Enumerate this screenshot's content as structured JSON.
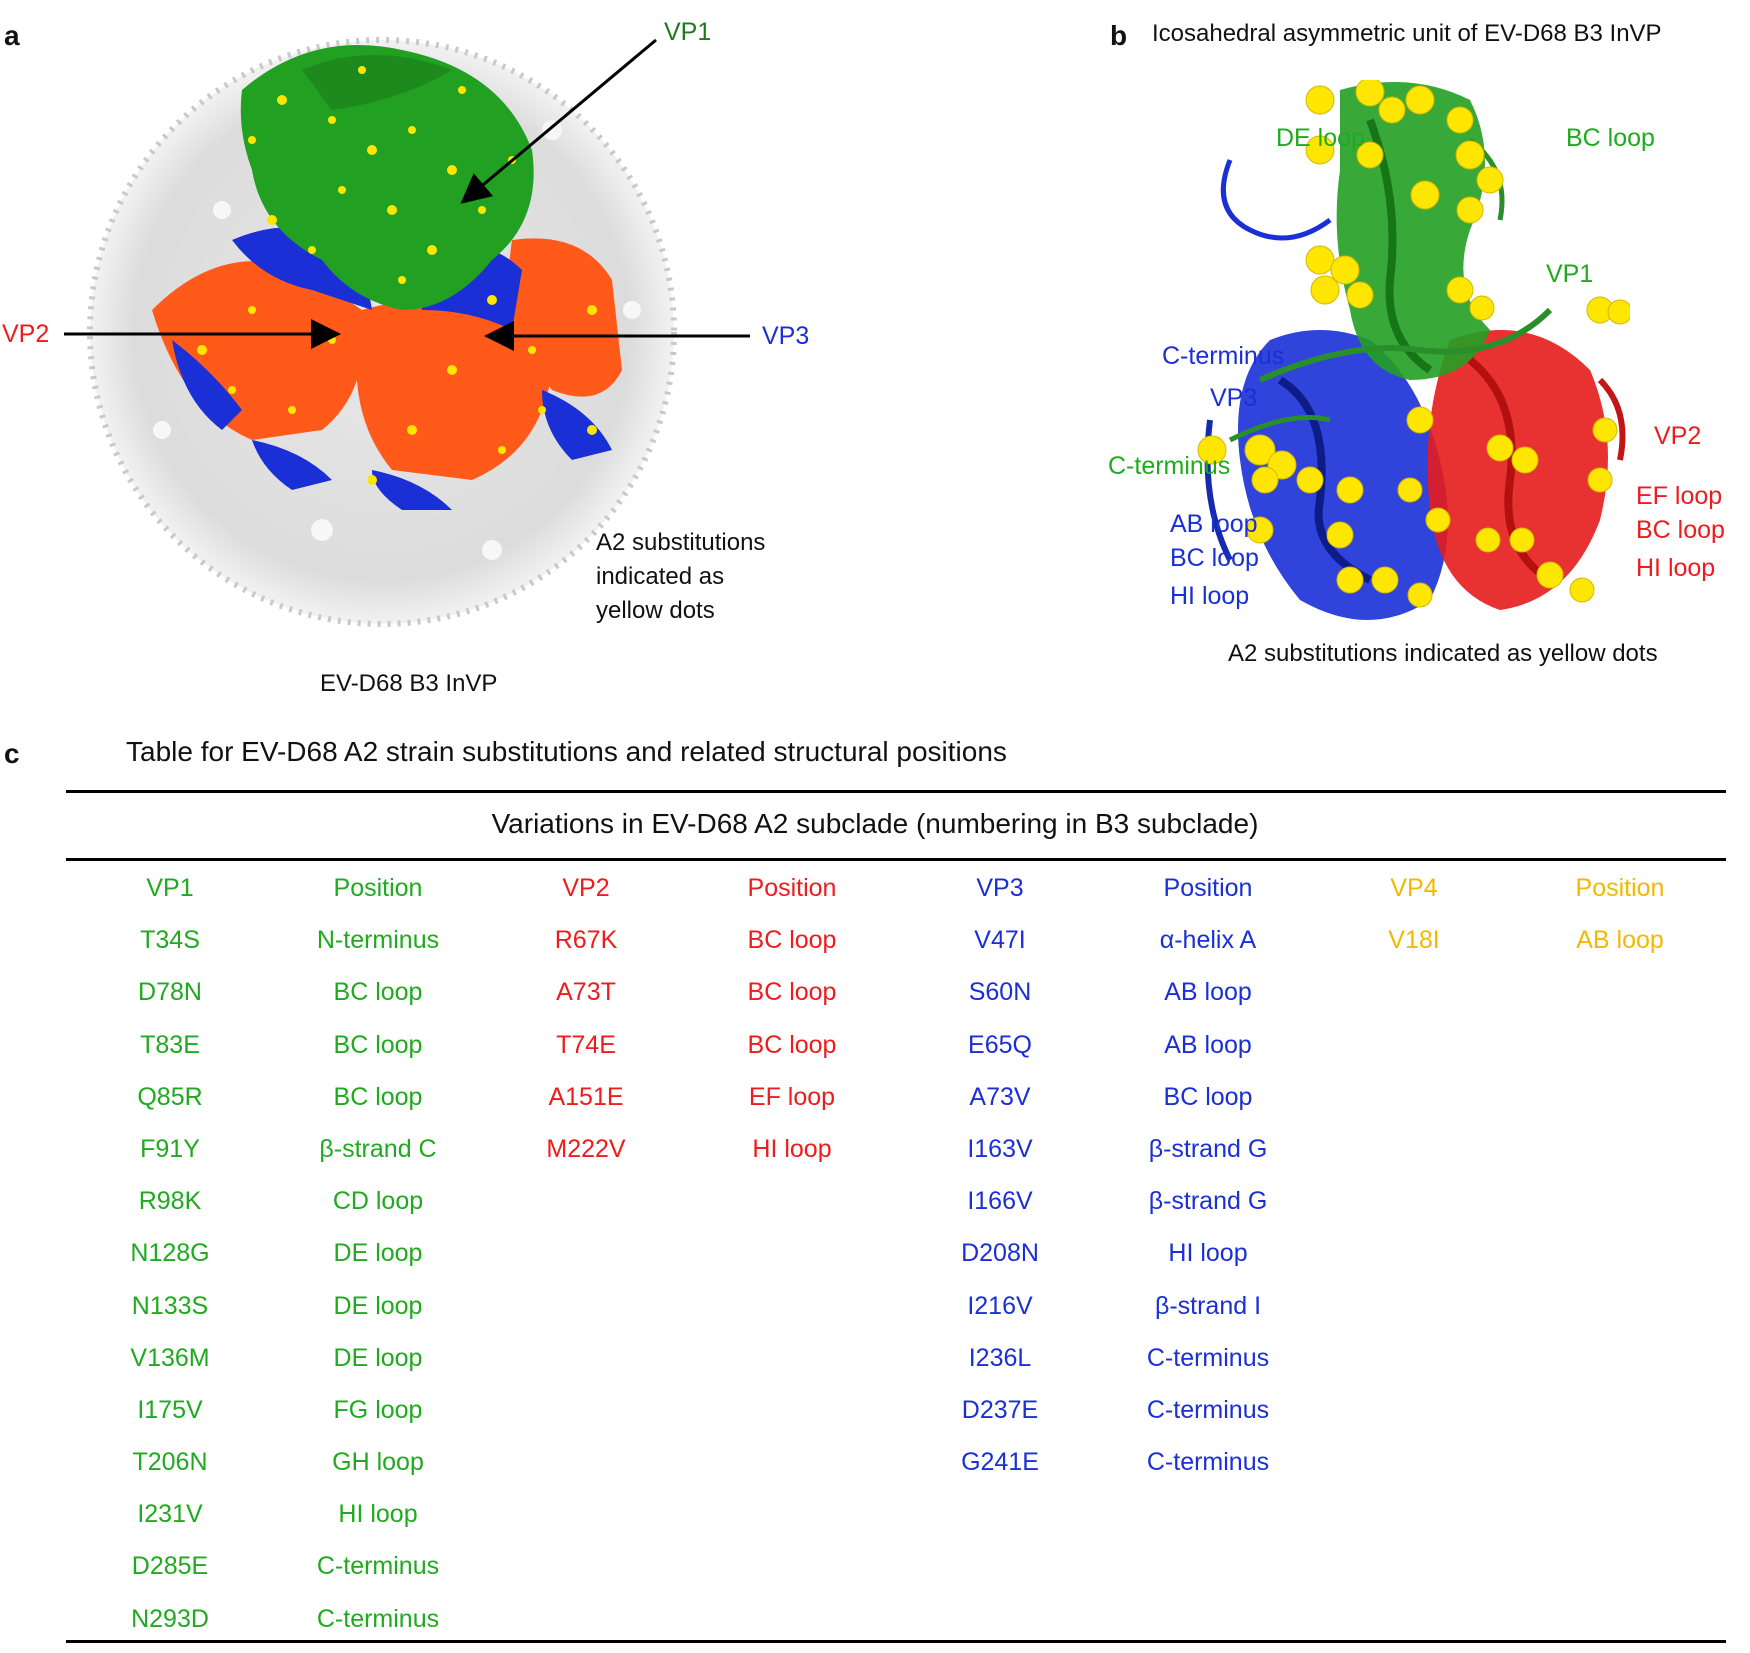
{
  "panels": {
    "a": {
      "letter": "a",
      "caption": "EV-D68 B3 InVP",
      "labels": {
        "vp1": "VP1",
        "vp2": "VP2",
        "vp3": "VP3"
      },
      "note": [
        "A2 substitutions",
        "indicated as",
        "yellow dots"
      ]
    },
    "b": {
      "letter": "b",
      "title": "Icosahedral asymmetric unit of EV-D68 B3 InVP",
      "labels": {
        "de_loop": "DE loop",
        "bc_loop_top": "BC loop",
        "vp1": "VP1",
        "c_term_blue": "C-terminus",
        "vp3": "VP3",
        "c_term_green": "C-terminus",
        "ab_loop": "AB loop",
        "bc_loop_blue": "BC loop",
        "hi_loop_blue": "HI loop",
        "vp2": "VP2",
        "ef_loop": "EF loop",
        "bc_loop_red": "BC loop",
        "hi_loop_red": "HI loop"
      },
      "note": "A2 substitutions indicated as yellow dots"
    },
    "c": {
      "letter": "c",
      "title": "Table for EV-D68 A2 strain substitutions and related structural positions",
      "table_heading": "Variations in EV-D68 A2 subclade (numbering in B3 subclade)"
    }
  },
  "colors": {
    "vp1": "#1faa1f",
    "vp2": "#ee1c1c",
    "vp3": "#1a2fd6",
    "vp4": "#f5b800",
    "map_orange": "#ff5a1a",
    "dots": "#ffe600"
  },
  "table": {
    "vp1": {
      "header": "VP1",
      "position_header": "Position",
      "substitutions": [
        "T34S",
        "D78N",
        "T83E",
        "Q85R",
        "F91Y",
        "R98K",
        "N128G",
        "N133S",
        "V136M",
        "I175V",
        "T206N",
        "I231V",
        "D285E",
        "N293D"
      ],
      "positions": [
        "N-terminus",
        "BC loop",
        "BC loop",
        "BC loop",
        "β-strand C",
        "CD loop",
        "DE loop",
        "DE loop",
        "DE loop",
        "FG loop",
        "GH loop",
        "HI loop",
        "C-terminus",
        "C-terminus"
      ]
    },
    "vp2": {
      "header": "VP2",
      "position_header": "Position",
      "substitutions": [
        "R67K",
        "A73T",
        "T74E",
        "A151E",
        "M222V"
      ],
      "positions": [
        "BC loop",
        "BC loop",
        "BC loop",
        "EF loop",
        "HI loop"
      ]
    },
    "vp3": {
      "header": "VP3",
      "position_header": "Position",
      "substitutions": [
        "V47I",
        "S60N",
        "E65Q",
        "A73V",
        "I163V",
        "I166V",
        "D208N",
        "I216V",
        "I236L",
        "D237E",
        "G241E"
      ],
      "positions": [
        "α-helix A",
        "AB loop",
        "AB loop",
        "BC loop",
        "β-strand G",
        "β-strand G",
        "HI loop",
        "β-strand I",
        "C-terminus",
        "C-terminus",
        "C-terminus"
      ]
    },
    "vp4": {
      "header": "VP4",
      "position_header": "Position",
      "substitutions": [
        "V18I"
      ],
      "positions": [
        "AB loop"
      ]
    }
  }
}
